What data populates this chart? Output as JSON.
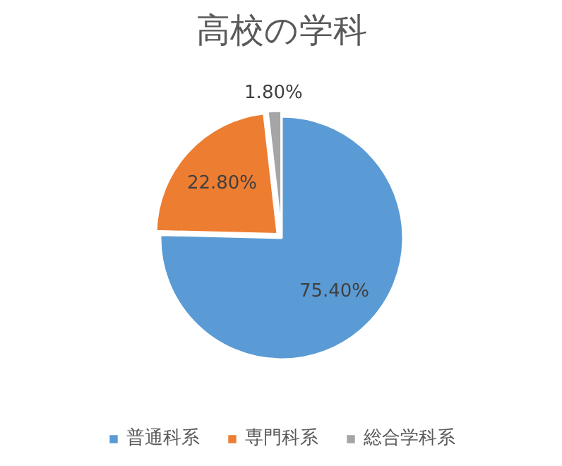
{
  "chart_data": {
    "type": "pie",
    "title": "高校の学科",
    "categories": [
      "普通科系",
      "専門科系",
      "総合学科系"
    ],
    "values": [
      75.4,
      22.8,
      1.8
    ],
    "colors": [
      "#5b9bd5",
      "#ed7d31",
      "#a5a5a5"
    ],
    "value_labels": [
      "75.40%",
      "22.80%",
      "1.80%"
    ],
    "legend": "bottom"
  }
}
